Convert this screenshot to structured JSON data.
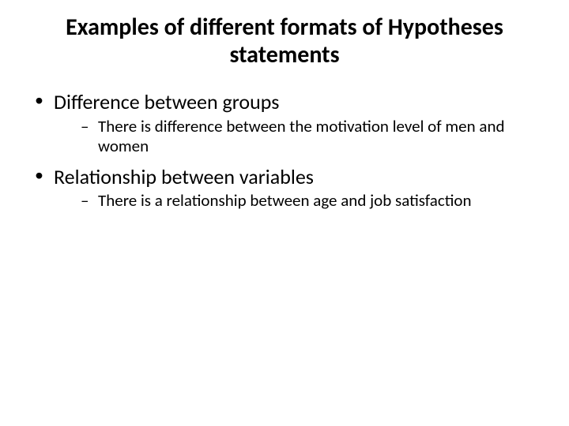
{
  "title": "Examples of different formats of Hypotheses statements",
  "bullets": [
    {
      "text": "Difference between groups",
      "sub": [
        "There is difference between the motivation level of men and women"
      ]
    },
    {
      "text": "Relationship between variables",
      "sub": [
        "There is a relationship between age and job satisfaction"
      ]
    }
  ],
  "colors": {
    "background": "#ffffff",
    "text": "#000000"
  },
  "typography": {
    "title_fontsize": 30,
    "title_weight": 700,
    "level1_fontsize": 26,
    "level2_fontsize": 21,
    "font_family": "Calibri"
  }
}
